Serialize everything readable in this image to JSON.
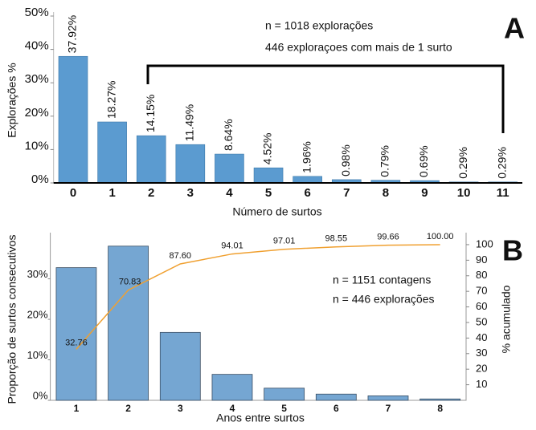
{
  "chart_data": [
    {
      "type": "bar",
      "panel_label": "A",
      "x_label": "Número de surtos",
      "y_label": "Explorações %",
      "annotations": [
        "n = 1018 explorações",
        "446 exploraçoes com mais de 1 surto"
      ],
      "categories": [
        "0",
        "1",
        "2",
        "3",
        "4",
        "5",
        "6",
        "7",
        "8",
        "9",
        "10",
        "11"
      ],
      "values": [
        37.92,
        18.27,
        14.15,
        11.49,
        8.64,
        4.52,
        1.96,
        0.98,
        0.79,
        0.69,
        0.29,
        0.29
      ],
      "value_labels": [
        "37.92%",
        "18.27%",
        "14.15%",
        "11.49%",
        "8.64%",
        "4.52%",
        "1.96%",
        "0.98%",
        "0.79%",
        "0.69%",
        "0.29%",
        "0.29%"
      ],
      "color": "#5b9bd0",
      "ylim": [
        0,
        50
      ],
      "yticks": [
        {
          "value": 0,
          "label": "0%"
        },
        {
          "value": 10,
          "label": "10%"
        },
        {
          "value": 20,
          "label": "20%"
        },
        {
          "value": 30,
          "label": "30%"
        },
        {
          "value": 40,
          "label": "40%"
        },
        {
          "value": 50,
          "label": "50%"
        }
      ]
    },
    {
      "type": "bar",
      "panel_label": "B",
      "x_label": "Anos entre surtos",
      "y_label": "Proporção de surtos consecutivos",
      "y2_label": "% acumulado",
      "annotations": [
        "n = 1151 contagens",
        "n = 446 explorações"
      ],
      "categories": [
        "1",
        "2",
        "3",
        "4",
        "5",
        "6",
        "7",
        "8"
      ],
      "series": [
        {
          "type": "bar",
          "color": "#75a6d2",
          "values": [
            32.76,
            38.07,
            16.77,
            6.41,
            3.0,
            1.54,
            1.11,
            0.34
          ]
        },
        {
          "type": "line",
          "axis": "y2",
          "color": "#f0a030",
          "values": [
            32.76,
            70.83,
            87.6,
            94.01,
            97.01,
            98.55,
            99.66,
            100.0
          ],
          "value_labels": [
            "32.76",
            "70.83",
            "87.60",
            "94.01",
            "97.01",
            "98.55",
            "99.66",
            "100.00"
          ]
        }
      ],
      "ylim": [
        0,
        41.4
      ],
      "yticks": [
        {
          "value": 0,
          "label": "0%"
        },
        {
          "value": 10,
          "label": "10%"
        },
        {
          "value": 20,
          "label": "20%"
        },
        {
          "value": 30,
          "label": "30%"
        }
      ],
      "y2lim": [
        0,
        107.7
      ],
      "y2ticks": [
        10,
        20,
        30,
        40,
        50,
        60,
        70,
        80,
        90,
        100
      ]
    }
  ]
}
